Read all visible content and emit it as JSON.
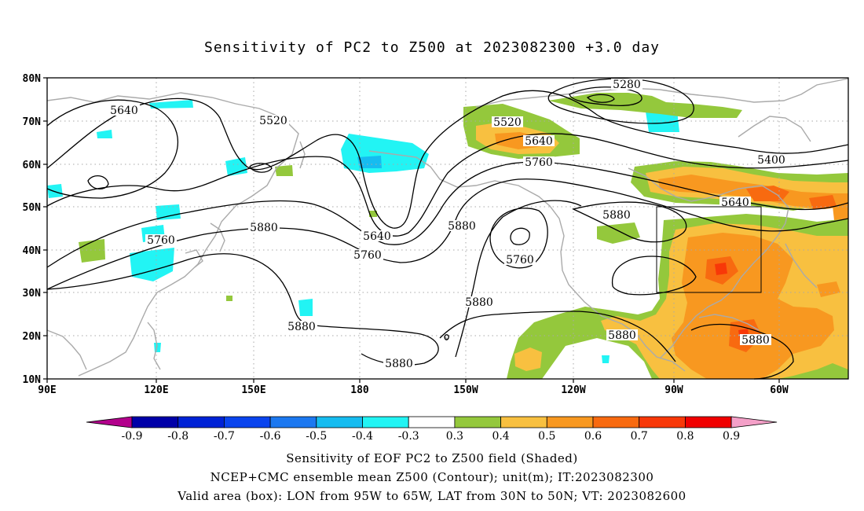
{
  "title": "Sensitivity of PC2 to Z500 at 2023082300 +3.0 day",
  "lat_labels": [
    "80N",
    "70N",
    "60N",
    "50N",
    "40N",
    "30N",
    "20N",
    "10N"
  ],
  "lon_labels": [
    "90E",
    "120E",
    "150E",
    "180",
    "150W",
    "120W",
    "90W",
    "60W"
  ],
  "contour_labels": [
    "5280",
    "5400",
    "5520",
    "5520",
    "5640",
    "5640",
    "5640",
    "5640",
    "5760",
    "5760",
    "5760",
    "5760",
    "5880",
    "5880",
    "5880",
    "5880",
    "5880",
    "5880",
    "5880",
    "5880"
  ],
  "colorbar": {
    "labels": [
      "-0.9",
      "-0.8",
      "-0.7",
      "-0.6",
      "-0.5",
      "-0.4",
      "-0.3",
      "0.3",
      "0.4",
      "0.5",
      "0.6",
      "0.7",
      "0.8",
      "0.9"
    ],
    "colors": [
      "#b3008c",
      "#0000a8",
      "#0022d6",
      "#0a44ee",
      "#1c78f0",
      "#16bcf0",
      "#22f4f4",
      "#ffffff",
      "#94c83c",
      "#f8c040",
      "#f89820",
      "#f86a10",
      "#f83808",
      "#f00000",
      "#f4a0c8"
    ]
  },
  "valid_box": {
    "lon_from": "95W",
    "lon_to": "65W",
    "lat_from": "30N",
    "lat_to": "50N"
  },
  "captions": [
    "Sensitivity of EOF PC2 to Z500 field (Shaded)",
    "NCEP+CMC ensemble mean Z500 (Contour); unit(m); IT:2023082300",
    "Valid area (box): LON from 95W to 65W, LAT from 30N to 50N; VT: 2023082600"
  ]
}
